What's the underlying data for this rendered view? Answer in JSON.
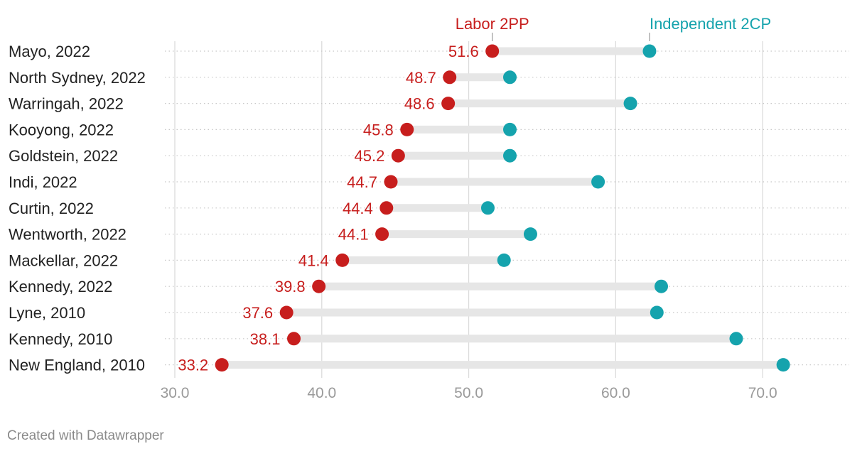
{
  "chart_data": {
    "type": "dot-range",
    "xlim": [
      30,
      76
    ],
    "x_ticks": [
      "30.0",
      "40.0",
      "50.0",
      "60.0",
      "70.0"
    ],
    "series": [
      {
        "name": "Labor 2PP",
        "color": "#c71e1d",
        "label_shown": true
      },
      {
        "name": "Independent 2CP",
        "color": "#15a3ad",
        "label_shown": false
      }
    ],
    "rows": [
      {
        "label": "Mayo, 2022",
        "labor": 51.6,
        "independent": 62.3
      },
      {
        "label": "North Sydney, 2022",
        "labor": 48.7,
        "independent": 52.8
      },
      {
        "label": "Warringah, 2022",
        "labor": 48.6,
        "independent": 61.0
      },
      {
        "label": "Kooyong, 2022",
        "labor": 45.8,
        "independent": 52.8
      },
      {
        "label": "Goldstein, 2022",
        "labor": 45.2,
        "independent": 52.8
      },
      {
        "label": "Indi, 2022",
        "labor": 44.7,
        "independent": 58.8
      },
      {
        "label": "Curtin, 2022",
        "labor": 44.4,
        "independent": 51.3
      },
      {
        "label": "Wentworth, 2022",
        "labor": 44.1,
        "independent": 54.2
      },
      {
        "label": "Mackellar, 2022",
        "labor": 41.4,
        "independent": 52.4
      },
      {
        "label": "Kennedy, 2022",
        "labor": 39.8,
        "independent": 63.1
      },
      {
        "label": "Lyne, 2010",
        "labor": 37.6,
        "independent": 62.8
      },
      {
        "label": "Kennedy, 2010",
        "labor": 38.1,
        "independent": 68.2
      },
      {
        "label": "New England, 2010",
        "labor": 33.2,
        "independent": 71.4
      }
    ]
  },
  "footer": {
    "credit": "Created with Datawrapper"
  },
  "colors": {
    "range_bar": "#e6e6e6",
    "grid": "#d9d9d9",
    "row_dots": "#c8c8c8",
    "axis_text": "#9a9a9a"
  }
}
